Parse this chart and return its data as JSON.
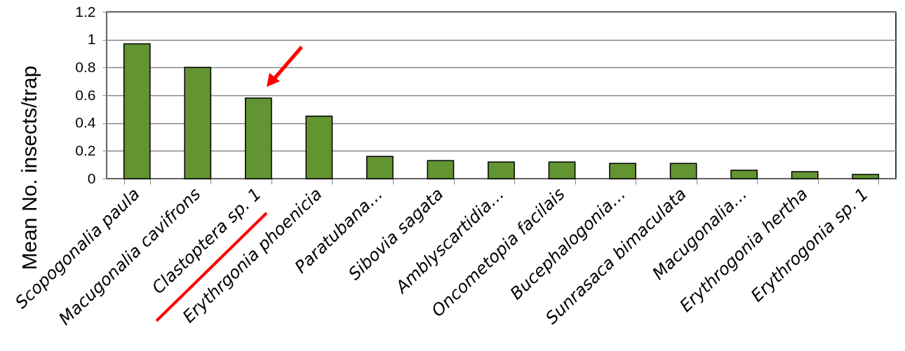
{
  "chart_data": {
    "type": "bar",
    "ylabel": "Mean No. insects/trap",
    "categories": [
      "Scopogonalia paula",
      "Macugonalia cavifrons",
      "Clastoptera sp. 1",
      "Erythrgonia phoenicia",
      "Paratubana…",
      "Sibovia sagata",
      "Amblyscartidia…",
      "Oncometopia facilais",
      "Bucephalogonia…",
      "Sunrasaca bimaculata",
      "Macugonalia…",
      "Erythrogonia hertha",
      "Erythrogonia sp.  1"
    ],
    "values": [
      0.97,
      0.8,
      0.58,
      0.45,
      0.16,
      0.13,
      0.12,
      0.12,
      0.11,
      0.11,
      0.06,
      0.05,
      0.03
    ],
    "color": "#629431",
    "ylim": [
      0,
      1.2
    ],
    "yticks": [
      0,
      0.2,
      0.4,
      0.6,
      0.8,
      1,
      1.2
    ],
    "grid": "y"
  }
}
